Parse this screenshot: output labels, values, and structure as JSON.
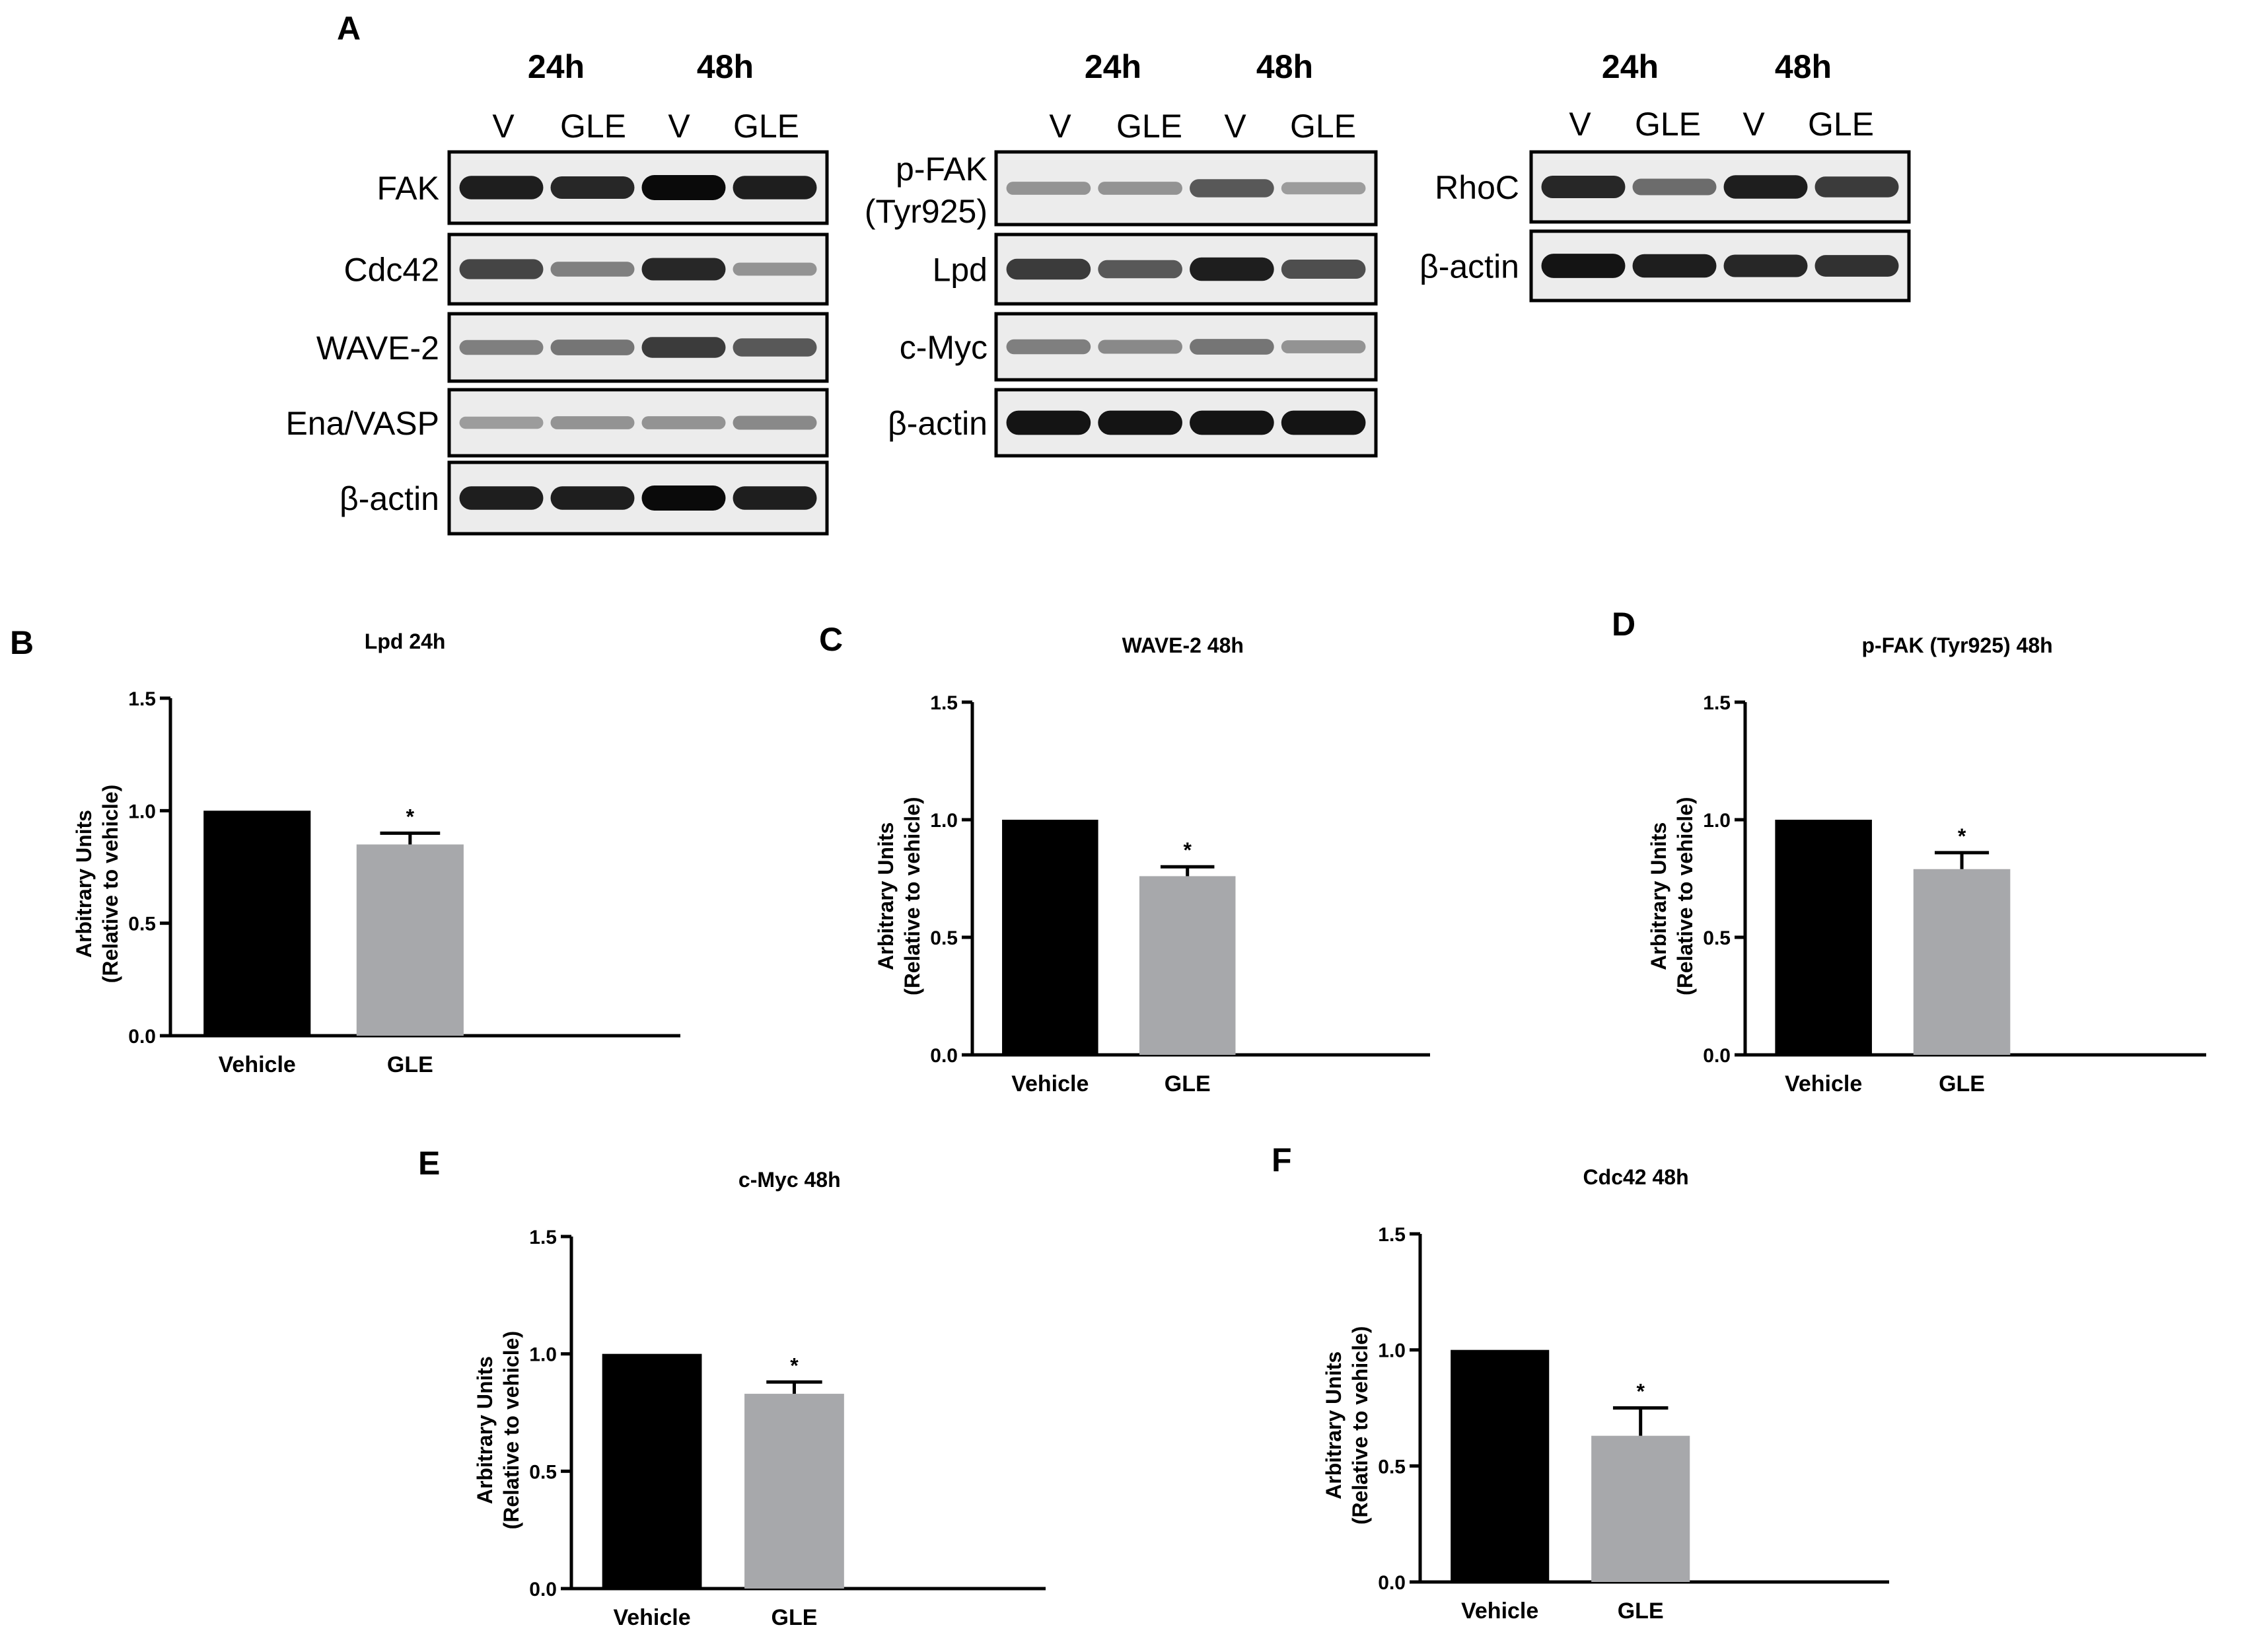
{
  "panel_a": {
    "letter": "A",
    "groups": [
      {
        "times": [
          "24h",
          "48h"
        ],
        "lanes": [
          "V",
          "GLE",
          "V",
          "GLE"
        ],
        "blots": [
          {
            "label": [
              "FAK"
            ],
            "bands": [
              0.9,
              0.85,
              1.0,
              0.9
            ]
          },
          {
            "label": [
              "Cdc42"
            ],
            "bands": [
              0.7,
              0.4,
              0.85,
              0.3
            ]
          },
          {
            "label": [
              "WAVE-2"
            ],
            "bands": [
              0.4,
              0.45,
              0.75,
              0.6
            ]
          },
          {
            "label": [
              "Ena/VASP"
            ],
            "bands": [
              0.25,
              0.3,
              0.3,
              0.35
            ]
          },
          {
            "label": [
              "β-actin"
            ],
            "bands": [
              0.9,
              0.9,
              1.0,
              0.9
            ]
          }
        ]
      },
      {
        "times": [
          "24h",
          "48h"
        ],
        "lanes": [
          "V",
          "GLE",
          "V",
          "GLE"
        ],
        "blots": [
          {
            "label": [
              "p-FAK",
              "(Tyr925)"
            ],
            "bands": [
              0.3,
              0.3,
              0.6,
              0.25
            ]
          },
          {
            "label": [
              "Lpd"
            ],
            "bands": [
              0.75,
              0.6,
              0.9,
              0.65
            ]
          },
          {
            "label": [
              "c-Myc"
            ],
            "bands": [
              0.4,
              0.35,
              0.45,
              0.3
            ]
          },
          {
            "label": [
              "β-actin"
            ],
            "bands": [
              0.95,
              0.95,
              0.95,
              0.95
            ]
          }
        ]
      },
      {
        "times": [
          "24h",
          "48h"
        ],
        "lanes": [
          "V",
          "GLE",
          "V",
          "GLE"
        ],
        "blots": [
          {
            "label": [
              "RhoC"
            ],
            "bands": [
              0.85,
              0.5,
              0.9,
              0.75
            ]
          },
          {
            "label": [
              "β-actin"
            ],
            "bands": [
              0.95,
              0.9,
              0.85,
              0.8
            ]
          }
        ]
      }
    ]
  },
  "chart_data": [
    {
      "letter": "B",
      "type": "bar",
      "title": "Lpd 24h",
      "categories": [
        "Vehicle",
        "GLE"
      ],
      "values": [
        1.0,
        0.85
      ],
      "errors": [
        0,
        0.05
      ],
      "significance": [
        "",
        "*"
      ],
      "ylabel": [
        "Arbitrary Units",
        "(Relative to vehicle)"
      ],
      "ylim": [
        0,
        1.5
      ],
      "yticks": [
        "0.0",
        "0.5",
        "1.0",
        "1.5"
      ],
      "colors": [
        "#000000",
        "#a7a8ab"
      ]
    },
    {
      "letter": "C",
      "type": "bar",
      "title": "WAVE-2 48h",
      "categories": [
        "Vehicle",
        "GLE"
      ],
      "values": [
        1.0,
        0.76
      ],
      "errors": [
        0,
        0.04
      ],
      "significance": [
        "",
        "*"
      ],
      "ylabel": [
        "Arbitrary Units",
        "(Relative to vehicle)"
      ],
      "ylim": [
        0,
        1.5
      ],
      "yticks": [
        "0.0",
        "0.5",
        "1.0",
        "1.5"
      ],
      "colors": [
        "#000000",
        "#a7a8ab"
      ]
    },
    {
      "letter": "D",
      "type": "bar",
      "title": "p-FAK (Tyr925) 48h",
      "categories": [
        "Vehicle",
        "GLE"
      ],
      "values": [
        1.0,
        0.79
      ],
      "errors": [
        0,
        0.07
      ],
      "significance": [
        "",
        "*"
      ],
      "ylabel": [
        "Arbitrary Units",
        "(Relative to vehicle)"
      ],
      "ylim": [
        0,
        1.5
      ],
      "yticks": [
        "0.0",
        "0.5",
        "1.0",
        "1.5"
      ],
      "colors": [
        "#000000",
        "#a7a8ab"
      ]
    },
    {
      "letter": "E",
      "type": "bar",
      "title": "c-Myc 48h",
      "categories": [
        "Vehicle",
        "GLE"
      ],
      "values": [
        1.0,
        0.83
      ],
      "errors": [
        0,
        0.05
      ],
      "significance": [
        "",
        "*"
      ],
      "ylabel": [
        "Arbitrary Units",
        "(Relative to vehicle)"
      ],
      "ylim": [
        0,
        1.5
      ],
      "yticks": [
        "0.0",
        "0.5",
        "1.0",
        "1.5"
      ],
      "colors": [
        "#000000",
        "#a7a8ab"
      ]
    },
    {
      "letter": "F",
      "type": "bar",
      "title": "Cdc42 48h",
      "categories": [
        "Vehicle",
        "GLE"
      ],
      "values": [
        1.0,
        0.63
      ],
      "errors": [
        0,
        0.12
      ],
      "significance": [
        "",
        "*"
      ],
      "ylabel": [
        "Arbitrary Units",
        "(Relative to vehicle)"
      ],
      "ylim": [
        0,
        1.5
      ],
      "yticks": [
        "0.0",
        "0.5",
        "1.0",
        "1.5"
      ],
      "colors": [
        "#000000",
        "#a7a8ab"
      ]
    }
  ]
}
